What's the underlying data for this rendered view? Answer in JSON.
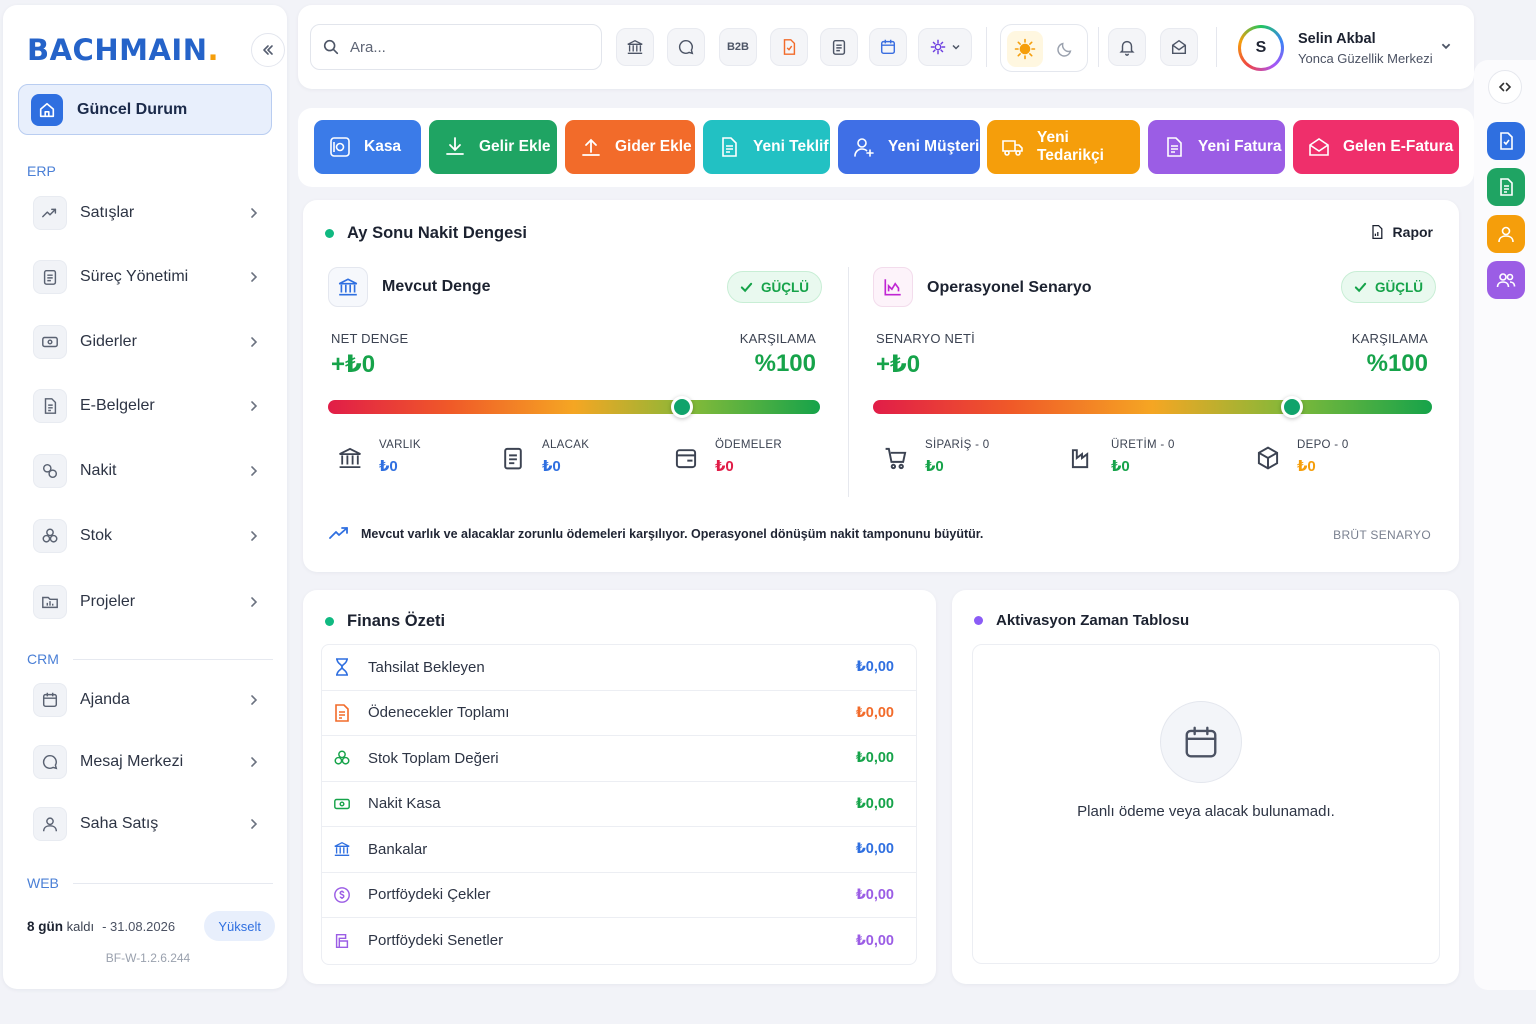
{
  "brand": {
    "name": "BACHMAIN",
    "dot": "."
  },
  "sidebar": {
    "active": {
      "label": "Güncel Durum"
    },
    "sections": {
      "erp": "ERP",
      "crm": "CRM",
      "web": "WEB"
    },
    "items": [
      {
        "label": "Satışlar",
        "icon": "trending-up-icon"
      },
      {
        "label": "Süreç Yönetimi",
        "icon": "clipboard-list-icon"
      },
      {
        "label": "Giderler",
        "icon": "cash-icon"
      },
      {
        "label": "E-Belgeler",
        "icon": "document-icon"
      },
      {
        "label": "Nakit",
        "icon": "coins-icon"
      },
      {
        "label": "Stok",
        "icon": "boxes-icon"
      },
      {
        "label": "Projeler",
        "icon": "folder-chart-icon"
      },
      {
        "label": "Ajanda",
        "icon": "calendar-icon"
      },
      {
        "label": "Mesaj Merkezi",
        "icon": "message-circle-icon"
      },
      {
        "label": "Saha Satış",
        "icon": "user-icon"
      }
    ],
    "trial": {
      "days": "8 gün",
      "suffix": "kaldı",
      "date": "-  31.08.2026",
      "upgrade": "Yükselt"
    },
    "version": "BF-W-1.2.6.244"
  },
  "topbar": {
    "search_placeholder": "Ara...",
    "b2b": "B2B",
    "user": {
      "initial": "S",
      "name": "Selin Akbal",
      "org": "Yonca Güzellik Merkezi"
    }
  },
  "actions": [
    {
      "label": "Kasa",
      "color": "#3b7be8"
    },
    {
      "label": "Gelir Ekle",
      "color": "#1fa463"
    },
    {
      "label": "Gider Ekle",
      "color": "#f26b2a"
    },
    {
      "label": "Yeni Teklif",
      "color": "#22c1c3"
    },
    {
      "label": "Yeni Müşteri",
      "color": "#3f6fe6"
    },
    {
      "label": "Yeni Tedarikçi",
      "color": "#f59e0b"
    },
    {
      "label": "Yeni Fatura",
      "color": "#9b5de5"
    },
    {
      "label": "Gelen E-Fatura",
      "color": "#ef2f6b"
    }
  ],
  "cash": {
    "title": "Ay Sonu Nakit Dengesi",
    "report": "Rapor",
    "current": {
      "title": "Mevcut Denge",
      "badge": "GÜÇLÜ",
      "net_label": "NET DENGE",
      "net_value": "+₺0",
      "cover_label": "KARŞILAMA",
      "cover_value": "%100",
      "gauge_level": 0.72,
      "metrics": [
        {
          "label": "VARLIK",
          "value": "₺0",
          "color": "#2f6fe0"
        },
        {
          "label": "ALACAK",
          "value": "₺0",
          "color": "#2f6fe0"
        },
        {
          "label": "ÖDEMELER",
          "value": "₺0",
          "color": "#e11d48"
        }
      ]
    },
    "scenario": {
      "title": "Operasyonel Senaryo",
      "badge": "GÜÇLÜ",
      "net_label": "SENARYO NETİ",
      "net_value": "+₺0",
      "cover_label": "KARŞILAMA",
      "cover_value": "%100",
      "gauge_level": 0.75,
      "metrics": [
        {
          "label": "SİPARİŞ - 0",
          "value": "₺0",
          "color": "#16a34a"
        },
        {
          "label": "ÜRETİM - 0",
          "value": "₺0",
          "color": "#16a34a"
        },
        {
          "label": "DEPO - 0",
          "value": "₺0",
          "color": "#f59e0b"
        }
      ]
    },
    "note": "Mevcut varlık ve alacaklar zorunlu ödemeleri karşılıyor. Operasyonel dönüşüm nakit tamponunu büyütür.",
    "tag": "BRÜT SENARYO"
  },
  "finance": {
    "title": "Finans Özeti",
    "rows": [
      {
        "label": "Tahsilat Bekleyen",
        "value": "₺0,00",
        "color": "#2f6fe0",
        "icon": "hourglass-icon"
      },
      {
        "label": "Ödenecekler Toplamı",
        "value": "₺0,00",
        "color": "#f26b2a",
        "icon": "invoice-icon"
      },
      {
        "label": "Stok Toplam Değeri",
        "value": "₺0,00",
        "color": "#16a34a",
        "icon": "boxes-icon"
      },
      {
        "label": "Nakit Kasa",
        "value": "₺0,00",
        "color": "#16a34a",
        "icon": "cash-icon"
      },
      {
        "label": "Bankalar",
        "value": "₺0,00",
        "color": "#2f6fe0",
        "icon": "bank-icon"
      },
      {
        "label": "Portföydeki Çekler",
        "value": "₺0,00",
        "color": "#9b5de5",
        "icon": "cheque-icon"
      },
      {
        "label": "Portföydeki Senetler",
        "value": "₺0,00",
        "color": "#9b5de5",
        "icon": "note-icon"
      }
    ]
  },
  "timeline": {
    "title": "Aktivasyon Zaman Tablosu",
    "empty": "Planlı ödeme veya alacak bulunamadı."
  }
}
